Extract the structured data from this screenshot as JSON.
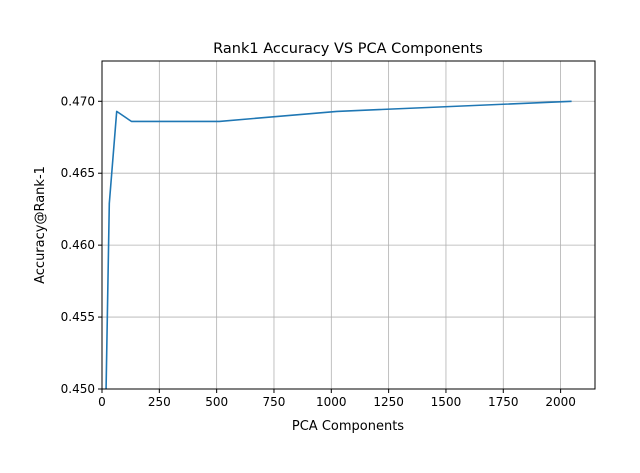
{
  "chart_data": {
    "type": "line",
    "title": "Rank1 Accuracy VS PCA Components",
    "xlabel": "PCA Components",
    "ylabel": "Accuracy@Rank-1",
    "xlim": [
      0,
      2150
    ],
    "ylim": [
      0.45,
      0.4728
    ],
    "xticks": [
      0,
      250,
      500,
      750,
      1000,
      1250,
      1500,
      1750,
      2000
    ],
    "yticks": [
      0.45,
      0.455,
      0.46,
      0.465,
      0.47
    ],
    "xtick_labels": [
      "0",
      "250",
      "500",
      "750",
      "1000",
      "1250",
      "1500",
      "1750",
      "2000"
    ],
    "ytick_labels": [
      "0.450",
      "0.455",
      "0.460",
      "0.465",
      "0.470"
    ],
    "grid": true,
    "series": [
      {
        "color": "#1f77b4",
        "x": [
          16,
          32,
          64,
          128,
          256,
          512,
          1024,
          2048
        ],
        "y": [
          0.4485,
          0.4629,
          0.4693,
          0.4686,
          0.4686,
          0.4686,
          0.4693,
          0.47
        ]
      }
    ]
  }
}
